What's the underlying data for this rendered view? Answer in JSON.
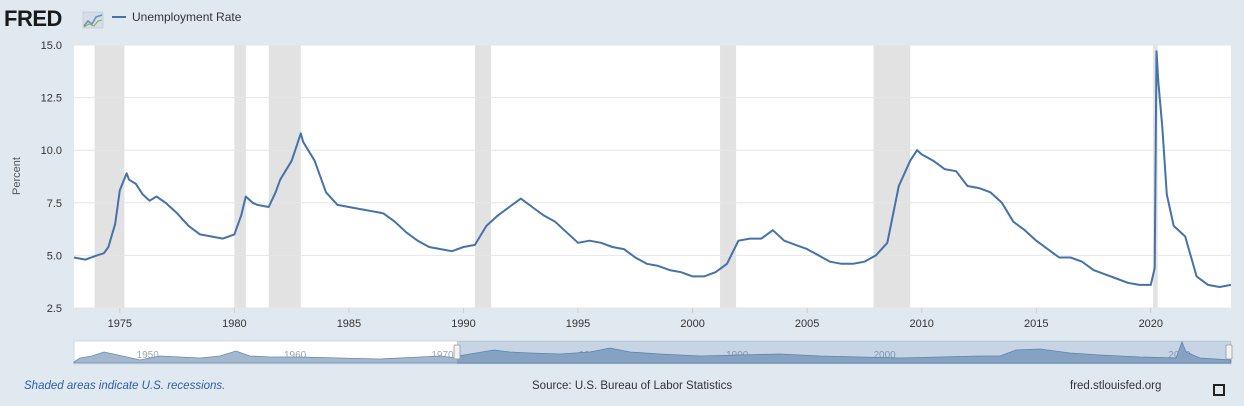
{
  "header": {
    "logo_text": "FRED",
    "legend_label": "Unemployment Rate",
    "series_color": "#4572a7"
  },
  "footer": {
    "recession_note": "Shaded areas indicate U.S. recessions.",
    "source": "Source: U.S. Bureau of Labor Statistics",
    "site": "fred.stlouisfed.org"
  },
  "navigator": {
    "labels": [
      "1950",
      "1960",
      "1970",
      "1980",
      "1990",
      "2000",
      "2010",
      "2020"
    ],
    "range": [
      1973,
      2023.5
    ]
  },
  "icons": {
    "logo": "fred-logo-chart-icon",
    "fullscreen": "fullscreen-icon"
  },
  "chart_data": {
    "type": "line",
    "ylabel": "Percent",
    "xlim": [
      1973,
      2023.5
    ],
    "ylim": [
      2.5,
      15.0
    ],
    "yticks": [
      "2.5",
      "5.0",
      "7.5",
      "10.0",
      "12.5",
      "15.0"
    ],
    "xticks": [
      "1975",
      "1980",
      "1985",
      "1990",
      "1995",
      "2000",
      "2005",
      "2010",
      "2015",
      "2020"
    ],
    "grid": true,
    "recessions": [
      [
        1973.9,
        1975.2
      ],
      [
        1980.0,
        1980.5
      ],
      [
        1981.5,
        1982.9
      ],
      [
        1990.5,
        1991.2
      ],
      [
        2001.2,
        2001.9
      ],
      [
        2007.9,
        2009.5
      ],
      [
        2020.1,
        2020.3
      ]
    ],
    "series": [
      {
        "name": "Unemployment Rate",
        "x": [
          1973.0,
          1973.5,
          1974.0,
          1974.3,
          1974.5,
          1974.8,
          1975.0,
          1975.3,
          1975.4,
          1975.7,
          1976.0,
          1976.3,
          1976.6,
          1977.0,
          1977.5,
          1978.0,
          1978.5,
          1979.0,
          1979.5,
          1980.0,
          1980.3,
          1980.5,
          1980.8,
          1981.0,
          1981.5,
          1981.8,
          1982.0,
          1982.5,
          1982.9,
          1983.0,
          1983.5,
          1984.0,
          1984.5,
          1985.0,
          1985.5,
          1986.0,
          1986.5,
          1987.0,
          1987.5,
          1988.0,
          1988.5,
          1989.0,
          1989.5,
          1990.0,
          1990.5,
          1991.0,
          1991.5,
          1992.0,
          1992.5,
          1993.0,
          1993.5,
          1994.0,
          1994.5,
          1995.0,
          1995.5,
          1996.0,
          1996.5,
          1997.0,
          1997.5,
          1998.0,
          1998.5,
          1999.0,
          1999.5,
          2000.0,
          2000.5,
          2001.0,
          2001.5,
          2002.0,
          2002.5,
          2003.0,
          2003.5,
          2004.0,
          2004.5,
          2005.0,
          2005.5,
          2006.0,
          2006.5,
          2007.0,
          2007.5,
          2008.0,
          2008.5,
          2009.0,
          2009.5,
          2009.8,
          2010.0,
          2010.5,
          2011.0,
          2011.5,
          2012.0,
          2012.5,
          2013.0,
          2013.5,
          2014.0,
          2014.5,
          2015.0,
          2015.5,
          2016.0,
          2016.5,
          2017.0,
          2017.5,
          2018.0,
          2018.5,
          2019.0,
          2019.5,
          2020.0,
          2020.17,
          2020.25,
          2020.33,
          2020.5,
          2020.7,
          2021.0,
          2021.5,
          2022.0,
          2022.5,
          2023.0,
          2023.5
        ],
        "values": [
          4.9,
          4.8,
          5.0,
          5.1,
          5.4,
          6.5,
          8.1,
          8.9,
          8.6,
          8.4,
          7.9,
          7.6,
          7.8,
          7.5,
          7.0,
          6.4,
          6.0,
          5.9,
          5.8,
          6.0,
          6.9,
          7.8,
          7.5,
          7.4,
          7.3,
          8.0,
          8.6,
          9.5,
          10.8,
          10.4,
          9.5,
          8.0,
          7.4,
          7.3,
          7.2,
          7.1,
          7.0,
          6.6,
          6.1,
          5.7,
          5.4,
          5.3,
          5.2,
          5.4,
          5.5,
          6.4,
          6.9,
          7.3,
          7.7,
          7.3,
          6.9,
          6.6,
          6.1,
          5.6,
          5.7,
          5.6,
          5.4,
          5.3,
          4.9,
          4.6,
          4.5,
          4.3,
          4.2,
          4.0,
          4.0,
          4.2,
          4.6,
          5.7,
          5.8,
          5.8,
          6.2,
          5.7,
          5.5,
          5.3,
          5.0,
          4.7,
          4.6,
          4.6,
          4.7,
          5.0,
          5.6,
          8.3,
          9.5,
          10.0,
          9.8,
          9.5,
          9.1,
          9.0,
          8.3,
          8.2,
          8.0,
          7.5,
          6.6,
          6.2,
          5.7,
          5.3,
          4.9,
          4.9,
          4.7,
          4.3,
          4.1,
          3.9,
          3.7,
          3.6,
          3.6,
          4.4,
          14.7,
          13.2,
          11.1,
          7.9,
          6.4,
          5.9,
          4.0,
          3.6,
          3.5,
          3.6
        ]
      }
    ]
  }
}
